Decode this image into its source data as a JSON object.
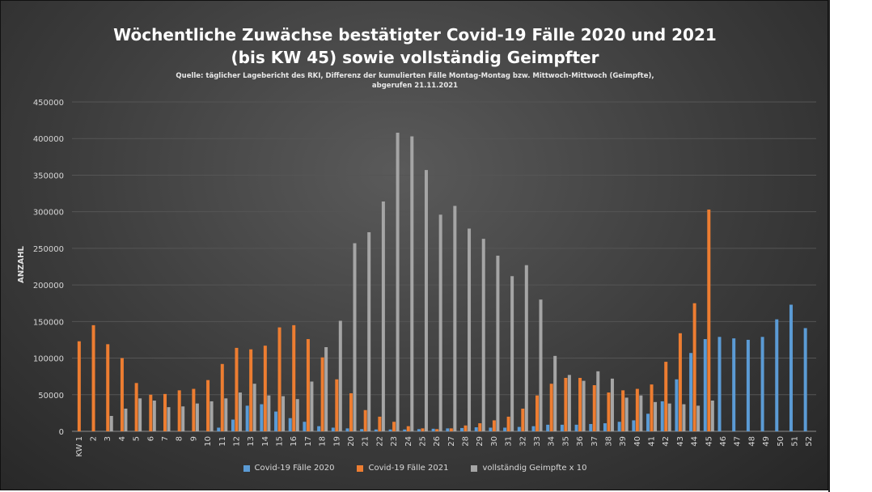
{
  "chart_data": {
    "type": "bar",
    "title_line1": "Wöchentliche Zuwächse bestätigter Covid-19 Fälle 2020 und 2021",
    "title_line2": "(bis KW 45) sowie vollständig Geimpfter",
    "subtitle_line1": "Quelle: täglicher Lagebericht des RKI, Differenz der kumulierten Fälle Montag-Montag bzw. Mittwoch-Mittwoch (Geimpfte),",
    "subtitle_line2": "abgerufen 21.11.2021",
    "ylabel": "ANZAHL",
    "ylim": [
      0,
      450000
    ],
    "yticks": [
      0,
      50000,
      100000,
      150000,
      200000,
      250000,
      300000,
      350000,
      400000,
      450000
    ],
    "grid": true,
    "legend_position": "bottom",
    "categories": [
      "KW 1",
      "2",
      "3",
      "4",
      "5",
      "6",
      "7",
      "8",
      "9",
      "10",
      "11",
      "12",
      "13",
      "14",
      "15",
      "16",
      "17",
      "18",
      "19",
      "20",
      "21",
      "22",
      "23",
      "24",
      "25",
      "26",
      "27",
      "28",
      "29",
      "30",
      "31",
      "32",
      "33",
      "34",
      "35",
      "36",
      "37",
      "38",
      "39",
      "40",
      "41",
      "42",
      "43",
      "44",
      "45",
      "46",
      "47",
      "48",
      "49",
      "50",
      "51",
      "52"
    ],
    "series": [
      {
        "name": "Covid-19 Fälle 2020",
        "color": "#5b9bd5",
        "values": [
          0,
          0,
          0,
          0,
          0,
          0,
          0,
          0,
          0,
          0,
          5000,
          16000,
          35000,
          37000,
          27000,
          18000,
          13000,
          7000,
          5000,
          4000,
          3000,
          2500,
          2500,
          2500,
          3000,
          3500,
          4000,
          4500,
          5500,
          5000,
          5000,
          6000,
          7000,
          9000,
          9000,
          9000,
          10000,
          11000,
          13000,
          15000,
          24000,
          41000,
          71000,
          107000,
          126000,
          129000,
          127000,
          125000,
          129000,
          153000,
          173000,
          141000
        ]
      },
      {
        "name": "Covid-19 Fälle 2021",
        "color": "#ed7d31",
        "values": [
          123000,
          145000,
          119000,
          100000,
          66000,
          50000,
          51000,
          56000,
          58000,
          70000,
          92000,
          114000,
          112000,
          117000,
          142000,
          145000,
          126000,
          101000,
          71000,
          52000,
          29000,
          20000,
          13000,
          7000,
          4000,
          3000,
          4000,
          8000,
          11000,
          15000,
          20000,
          31000,
          49000,
          65000,
          73000,
          73000,
          63000,
          53000,
          56000,
          58000,
          64000,
          95000,
          134000,
          175000,
          303000,
          0,
          0,
          0,
          0,
          0,
          0,
          0
        ]
      },
      {
        "name": "vollständig Geimpfte x 10",
        "color": "#a5a5a5",
        "values": [
          0,
          0,
          21000,
          31000,
          45000,
          42000,
          33000,
          34000,
          38000,
          41000,
          45000,
          53000,
          65000,
          49000,
          48000,
          44000,
          68000,
          115000,
          151000,
          257000,
          272000,
          314000,
          408000,
          403000,
          357000,
          296000,
          308000,
          277000,
          263000,
          240000,
          212000,
          227000,
          180000,
          103000,
          77000,
          69000,
          82000,
          72000,
          46000,
          49000,
          40000,
          38000,
          37000,
          35000,
          42000,
          0,
          0,
          0,
          0,
          0,
          0,
          0
        ]
      }
    ]
  }
}
